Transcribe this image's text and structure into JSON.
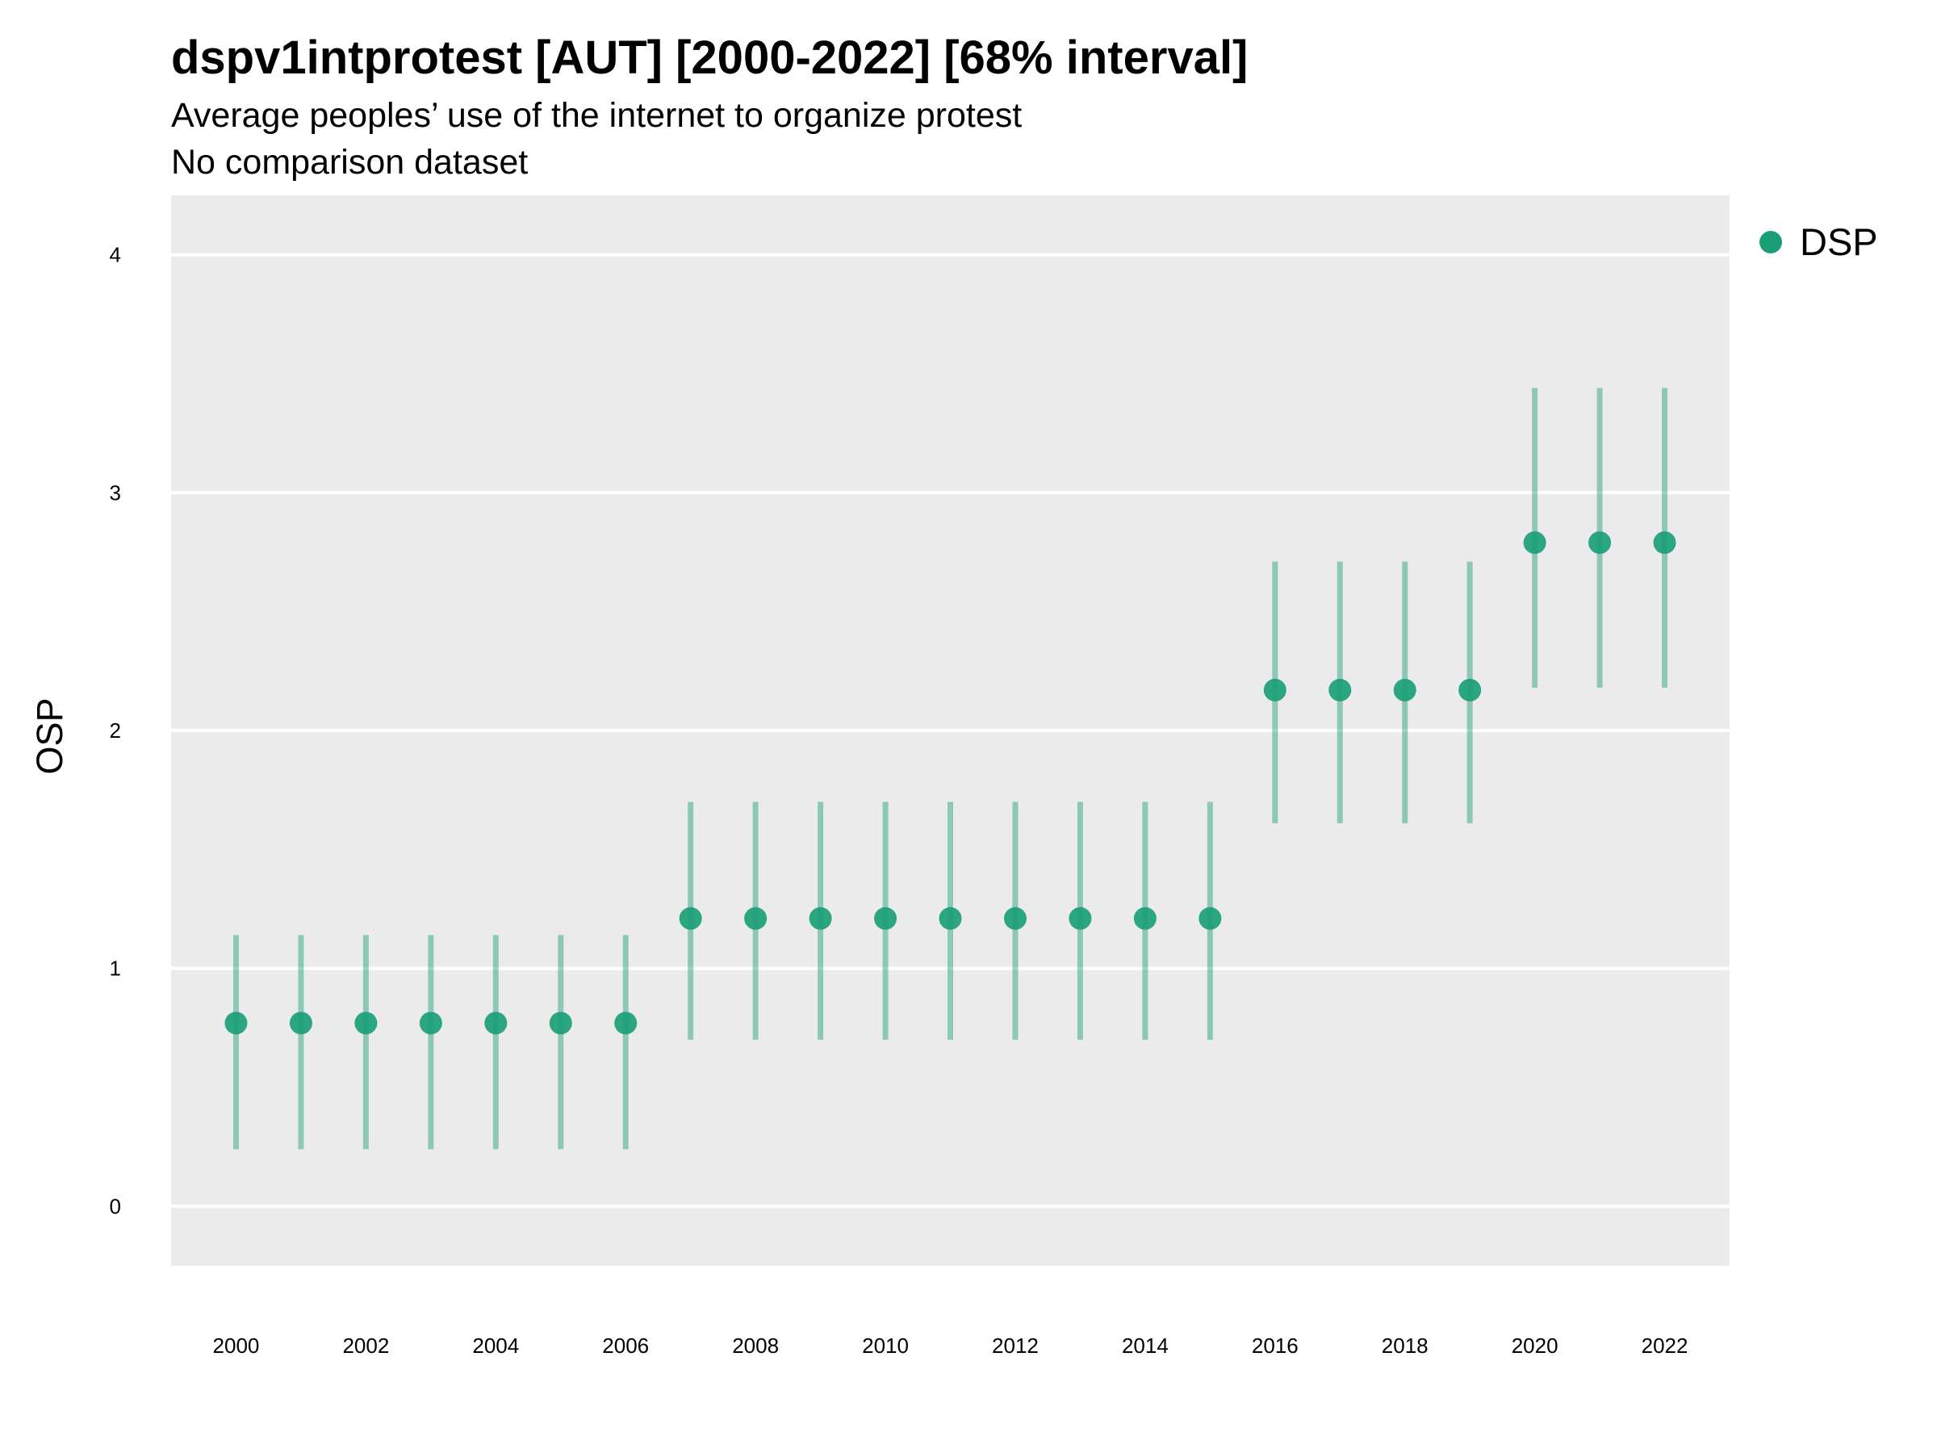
{
  "colors": {
    "series": "#1b9e77",
    "panel": "#ebebeb",
    "grid": "#ffffff"
  },
  "chart_data": {
    "type": "scatter",
    "title": "dspv1intprotest [AUT] [2000-2022] [68% interval]",
    "subtitle": "Average peoples’ use of the internet to organize protest\nNo comparison dataset",
    "ylabel": "OSP",
    "xlabel": "",
    "ylim": [
      -0.25,
      4.25
    ],
    "xlim": [
      1999,
      2023
    ],
    "yticks": [
      0,
      1,
      2,
      3,
      4
    ],
    "xticks": [
      2000,
      2002,
      2004,
      2006,
      2008,
      2010,
      2012,
      2014,
      2016,
      2018,
      2020,
      2022
    ],
    "grid": true,
    "legend_position": "right",
    "series": [
      {
        "name": "DSP",
        "x": [
          2000,
          2001,
          2002,
          2003,
          2004,
          2005,
          2006,
          2007,
          2008,
          2009,
          2010,
          2011,
          2012,
          2013,
          2014,
          2015,
          2016,
          2017,
          2018,
          2019,
          2020,
          2021,
          2022
        ],
        "y": [
          0.77,
          0.77,
          0.77,
          0.77,
          0.77,
          0.77,
          0.77,
          1.21,
          1.21,
          1.21,
          1.21,
          1.21,
          1.21,
          1.21,
          1.21,
          1.21,
          2.17,
          2.17,
          2.17,
          2.17,
          2.79,
          2.79,
          2.79
        ],
        "lower": [
          0.24,
          0.24,
          0.24,
          0.24,
          0.24,
          0.24,
          0.24,
          0.7,
          0.7,
          0.7,
          0.7,
          0.7,
          0.7,
          0.7,
          0.7,
          0.7,
          1.61,
          1.61,
          1.61,
          1.61,
          2.18,
          2.18,
          2.18
        ],
        "upper": [
          1.14,
          1.14,
          1.14,
          1.14,
          1.14,
          1.14,
          1.14,
          1.7,
          1.7,
          1.7,
          1.7,
          1.7,
          1.7,
          1.7,
          1.7,
          1.7,
          2.71,
          2.71,
          2.71,
          2.71,
          3.44,
          3.44,
          3.44
        ]
      }
    ]
  }
}
